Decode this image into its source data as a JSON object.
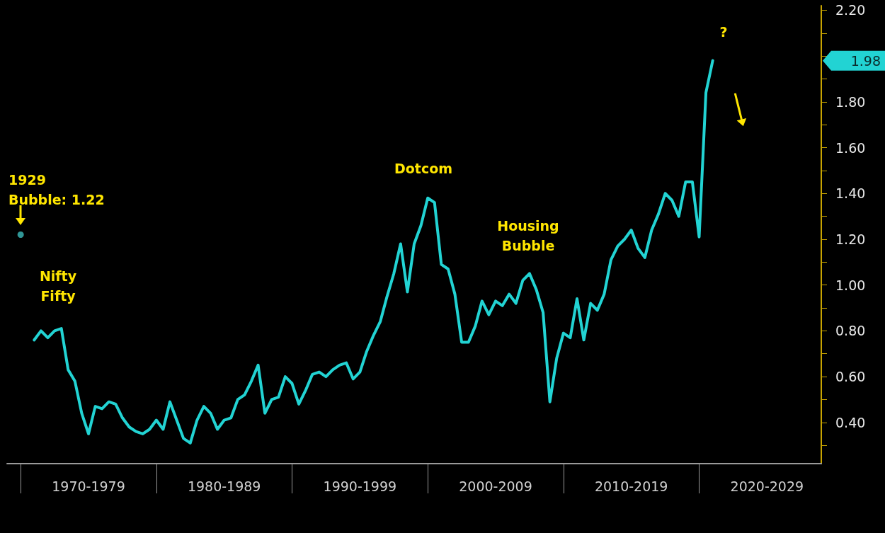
{
  "chart_data": {
    "type": "line",
    "categories": [
      null,
      null,
      null,
      null,
      null,
      null,
      null,
      null,
      null,
      null,
      null,
      null,
      "1970-1979",
      null,
      null,
      null,
      null,
      null,
      null,
      null,
      null,
      null,
      null,
      null,
      null,
      null,
      null,
      null,
      null,
      null,
      null,
      null,
      "1980-1989",
      null,
      null,
      null,
      null,
      null,
      null,
      null,
      null,
      null,
      null,
      null,
      null,
      null,
      null,
      null,
      null,
      null,
      null,
      null,
      "1990-1999",
      null,
      null,
      null,
      null,
      null,
      null,
      null,
      null,
      null,
      null,
      null,
      null,
      null,
      null,
      null,
      null,
      null,
      null,
      null,
      "2000-2009",
      null,
      null,
      null,
      null,
      null,
      null,
      null,
      null,
      null,
      null,
      null,
      null,
      null,
      null,
      null,
      null,
      null,
      null,
      null,
      "2010-2019",
      null,
      null,
      null,
      null,
      null,
      null,
      null,
      null,
      null,
      null,
      null,
      null,
      null,
      null,
      null,
      null,
      null,
      null,
      null,
      "2020-2029",
      null,
      null,
      null,
      null,
      null,
      null,
      null,
      null
    ],
    "ylim": [
      0.22,
      2.22
    ],
    "yticks": [
      {
        "value": 0.3,
        "label": null
      },
      {
        "value": 0.4,
        "label": "0.40"
      },
      {
        "value": 0.5,
        "label": null
      },
      {
        "value": 0.6,
        "label": "0.60"
      },
      {
        "value": 0.7,
        "label": null
      },
      {
        "value": 0.8,
        "label": "0.80"
      },
      {
        "value": 0.9,
        "label": null
      },
      {
        "value": 1.0,
        "label": "1.00"
      },
      {
        "value": 1.1,
        "label": null
      },
      {
        "value": 1.2,
        "label": "1.20"
      },
      {
        "value": 1.3,
        "label": null
      },
      {
        "value": 1.4,
        "label": "1.40"
      },
      {
        "value": 1.5,
        "label": null
      },
      {
        "value": 1.6,
        "label": "1.60"
      },
      {
        "value": 1.7,
        "label": null
      },
      {
        "value": 1.8,
        "label": "1.80"
      },
      {
        "value": 1.9,
        "label": null
      },
      {
        "value": 2.0,
        "label": null
      },
      {
        "value": 2.1,
        "label": null
      },
      {
        "value": 2.2,
        "label": "2.20"
      }
    ],
    "grid": false,
    "line_style": "solid",
    "series": [
      {
        "color": "#22d3d3",
        "values": [
          null,
          null,
          null,
          null,
          0.76,
          0.8,
          0.77,
          0.8,
          0.81,
          0.63,
          0.58,
          0.44,
          0.35,
          0.47,
          0.46,
          0.49,
          0.48,
          0.42,
          0.38,
          0.36,
          0.35,
          0.37,
          0.41,
          0.37,
          0.49,
          0.41,
          0.33,
          0.31,
          0.41,
          0.47,
          0.44,
          0.37,
          0.41,
          0.42,
          0.5,
          0.52,
          0.58,
          0.65,
          0.44,
          0.5,
          0.51,
          0.6,
          0.57,
          0.48,
          0.54,
          0.61,
          0.62,
          0.6,
          0.63,
          0.65,
          0.66,
          0.59,
          0.62,
          0.71,
          0.78,
          0.84,
          0.95,
          1.05,
          1.18,
          0.97,
          1.18,
          1.26,
          1.38,
          1.36,
          1.09,
          1.07,
          0.96,
          0.75,
          0.75,
          0.82,
          0.93,
          0.87,
          0.93,
          0.91,
          0.96,
          0.92,
          1.02,
          1.05,
          0.98,
          0.88,
          0.49,
          0.68,
          0.79,
          0.77,
          0.94,
          0.76,
          0.92,
          0.89,
          0.96,
          1.11,
          1.17,
          1.2,
          1.24,
          1.16,
          1.12,
          1.24,
          1.31,
          1.4,
          1.37,
          1.3,
          1.45,
          1.45,
          1.21,
          1.84,
          1.98,
          null,
          null,
          null,
          null,
          null,
          null,
          null,
          null,
          null,
          null,
          null,
          null,
          null,
          null,
          null,
          null
        ]
      },
      {
        "type": "scatter",
        "color": "#3cbcbc",
        "values": [
          null,
          null,
          1.22,
          null,
          null,
          null,
          null,
          null,
          null,
          null,
          null,
          null,
          null,
          null,
          null,
          null,
          null,
          null,
          null,
          null,
          null,
          null,
          null,
          null,
          null,
          null,
          null,
          null,
          null,
          null,
          null,
          null,
          null,
          null,
          null,
          null,
          null,
          null,
          null,
          null,
          null,
          null,
          null,
          null,
          null,
          null,
          null,
          null,
          null,
          null,
          null,
          null,
          null,
          null,
          null,
          null,
          null,
          null,
          null,
          null,
          null,
          null,
          null,
          null,
          null,
          null,
          null,
          null,
          null,
          null,
          null,
          null,
          null,
          null,
          null,
          null,
          null,
          null,
          null,
          null,
          null,
          null,
          null,
          null,
          null,
          null,
          null,
          null,
          null,
          null,
          null,
          null,
          null,
          null,
          null,
          null,
          null,
          null,
          null,
          null,
          null,
          null,
          null,
          null,
          null,
          null,
          null,
          null,
          null,
          null,
          null,
          null,
          null,
          null,
          null,
          null,
          null,
          null,
          null,
          null,
          null
        ]
      }
    ],
    "annotations": [
      "1929\nBubble: 1.22",
      "Nifty\nFifty",
      "Dotcom",
      "Housing\nBubble",
      "?",
      "1.98"
    ]
  }
}
